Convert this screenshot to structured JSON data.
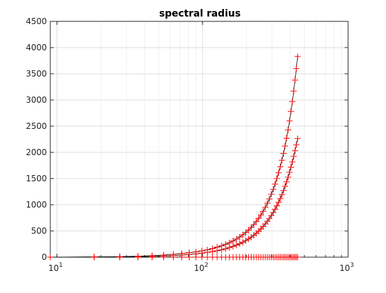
{
  "chart_data": {
    "type": "scatter",
    "title": "spectral radius",
    "xlabel": "",
    "ylabel": "",
    "xscale": "log",
    "xlim": [
      9,
      1000
    ],
    "ylim": [
      0,
      4500
    ],
    "grid": true,
    "legend": "none",
    "marker": "+",
    "marker_color": "#ff0000",
    "line_color": "#000000",
    "x_tick_labels": [
      {
        "base": "10",
        "exp": "1",
        "value": 10
      },
      {
        "base": "10",
        "exp": "2",
        "value": 100
      },
      {
        "base": "10",
        "exp": "3",
        "value": 1000
      }
    ],
    "y_ticks": [
      0,
      500,
      1000,
      1500,
      2000,
      2500,
      3000,
      3500,
      4000,
      4500
    ],
    "y_tick_labels": [
      "0",
      "500",
      "1000",
      "1500",
      "2000",
      "2500",
      "3000",
      "3500",
      "4000",
      "4500"
    ],
    "series": [
      {
        "x": [
          9,
          18,
          27,
          36,
          45,
          54,
          63,
          72,
          81,
          90,
          99,
          108,
          117,
          126,
          135,
          144,
          153,
          162,
          171,
          180,
          189,
          198,
          207,
          216,
          225,
          234,
          243,
          252,
          261,
          270,
          279,
          288,
          297,
          306,
          315,
          324,
          333,
          342,
          351,
          360,
          369,
          378,
          387,
          396,
          405,
          414,
          423,
          432,
          441,
          450
        ],
        "y": [
          0,
          5,
          10,
          20,
          30,
          40,
          55,
          70,
          85,
          100,
          120,
          140,
          165,
          190,
          215,
          245,
          275,
          310,
          345,
          385,
          425,
          470,
          515,
          565,
          620,
          680,
          740,
          805,
          875,
          950,
          1030,
          1110,
          1200,
          1295,
          1395,
          1500,
          1610,
          1725,
          1850,
          1980,
          2120,
          2270,
          2430,
          2600,
          2780,
          2970,
          3170,
          3380,
          3600,
          3830
        ]
      },
      {
        "x": [
          9,
          18,
          27,
          36,
          45,
          54,
          63,
          72,
          81,
          90,
          99,
          108,
          117,
          126,
          135,
          144,
          153,
          162,
          171,
          180,
          189,
          198,
          207,
          216,
          225,
          234,
          243,
          252,
          261,
          270,
          279,
          288,
          297,
          306,
          315,
          324,
          333,
          342,
          351,
          360,
          369,
          378,
          387,
          396,
          405,
          414,
          423,
          432,
          441,
          450
        ],
        "y": [
          0,
          3,
          6,
          10,
          15,
          22,
          30,
          40,
          50,
          62,
          75,
          90,
          105,
          122,
          140,
          160,
          182,
          205,
          230,
          256,
          285,
          315,
          347,
          381,
          418,
          456,
          497,
          540,
          585,
          633,
          684,
          737,
          793,
          852,
          914,
          979,
          1047,
          1118,
          1193,
          1271,
          1353,
          1438,
          1527,
          1620,
          1717,
          1818,
          1923,
          2032,
          2145,
          2263
        ]
      },
      {
        "x": [
          9,
          18,
          27,
          36,
          45,
          54,
          63,
          72,
          81,
          90,
          99,
          108,
          117,
          126,
          135,
          144,
          153,
          162,
          171,
          180,
          189,
          198,
          207,
          216,
          225,
          234,
          243,
          252,
          261,
          270,
          279,
          288,
          297,
          306,
          315,
          324,
          333,
          342,
          351,
          360,
          369,
          378,
          387,
          396,
          405,
          414,
          423,
          432,
          441,
          450
        ],
        "y": [
          0,
          0,
          0,
          0,
          0,
          0,
          0,
          0,
          0,
          0,
          0,
          0,
          0,
          0,
          0,
          0,
          0,
          0,
          0,
          0,
          0,
          0,
          0,
          0,
          0,
          0,
          0,
          0,
          0,
          0,
          0,
          0,
          0,
          0,
          0,
          0,
          0,
          0,
          0,
          0,
          0,
          0,
          0,
          0,
          0,
          0,
          0,
          0,
          0,
          0
        ]
      }
    ]
  }
}
